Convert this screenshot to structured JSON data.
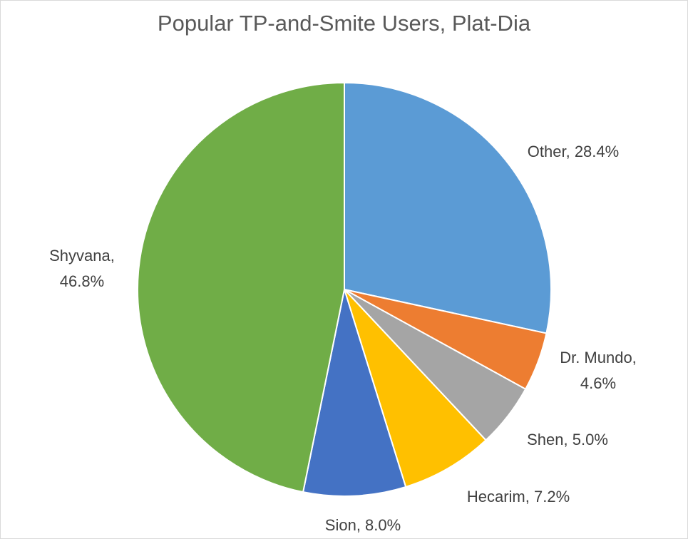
{
  "chart_data": {
    "type": "pie",
    "title": "Popular TP-and-Smite Users, Plat-Dia",
    "slices": [
      {
        "name": "Other",
        "value": 28.4,
        "color": "#5B9BD5",
        "label_lines": [
          "Other, 28.4%"
        ]
      },
      {
        "name": "Dr. Mundo",
        "value": 4.6,
        "color": "#ED7D31",
        "label_lines": [
          "Dr. Mundo,",
          "4.6%"
        ]
      },
      {
        "name": "Shen",
        "value": 5.0,
        "color": "#A5A5A5",
        "label_lines": [
          "Shen, 5.0%"
        ]
      },
      {
        "name": "Hecarim",
        "value": 7.2,
        "color": "#FFC000",
        "label_lines": [
          "Hecarim, 7.2%"
        ]
      },
      {
        "name": "Sion",
        "value": 8.0,
        "color": "#4472C4",
        "label_lines": [
          "Sion, 8.0%"
        ]
      },
      {
        "name": "Shyvana",
        "value": 46.8,
        "color": "#70AD47",
        "label_lines": [
          "Shyvana,",
          "46.8%"
        ]
      }
    ],
    "start_angle_deg": 0,
    "direction": "clockwise",
    "legend": "none",
    "data_labels": "outside"
  }
}
